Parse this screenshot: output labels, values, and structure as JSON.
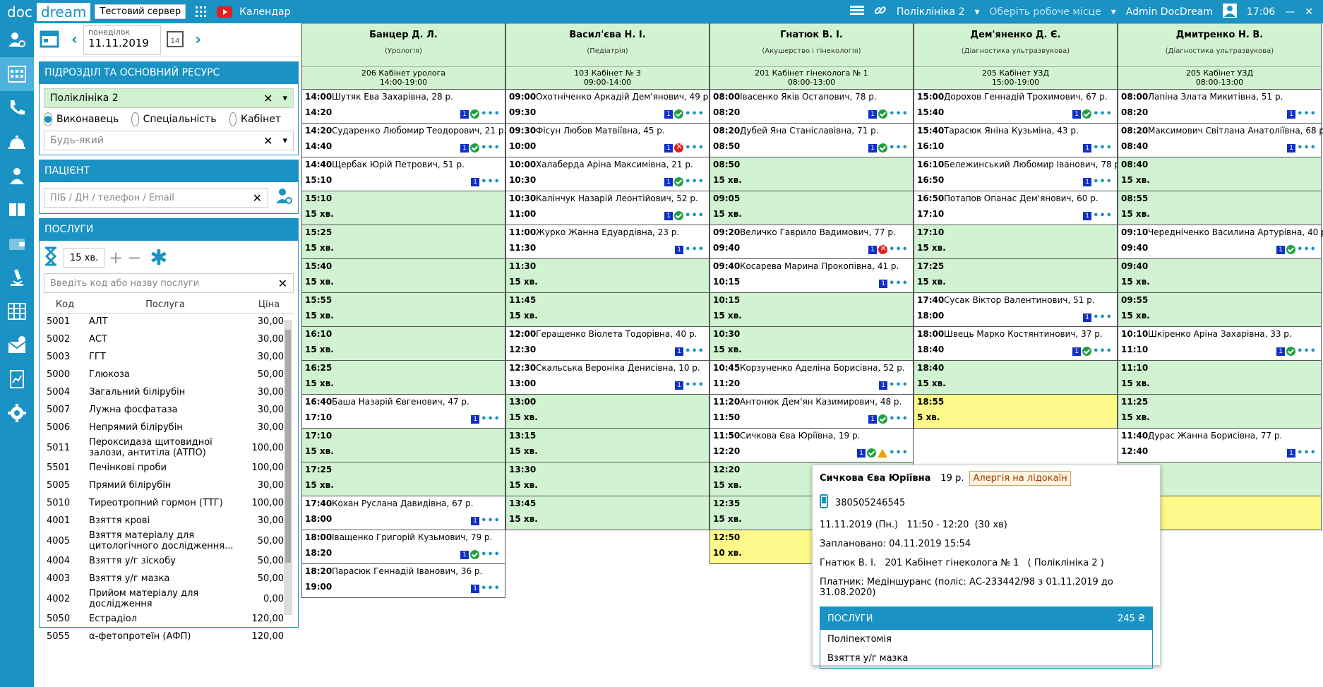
{
  "topbar": {
    "logo_doc": "doc",
    "logo_dream": "dream",
    "server": "Тестовий сервер",
    "section": "Календар",
    "clinic": "Поліклініка 2",
    "workplace": "Оберіть робоче місце",
    "user": "Admin DocDream",
    "time": "17:06"
  },
  "date": {
    "weekday": "понеділок",
    "value": "11.11.2019"
  },
  "unit": {
    "title": "ПІДРОЗДІЛ ТА ОСНОВНИЙ РЕСУРС",
    "clinic": "Поліклініка 2",
    "radio_performer": "Виконавець",
    "radio_specialty": "Спеціальність",
    "radio_room": "Кабінет",
    "any_placeholder": "Будь-який"
  },
  "patient": {
    "title": "ПАЦІЄНТ",
    "placeholder": "ПІБ / ДН / телефон / Email"
  },
  "services": {
    "title": "ПОСЛУГИ",
    "duration": "15 хв.",
    "search_placeholder": "Введіть код або назву послуги",
    "col_code": "Код",
    "col_name": "Послуга",
    "col_price": "Ціна",
    "items": [
      {
        "code": "5001",
        "name": "АЛТ",
        "price": "30,00"
      },
      {
        "code": "5002",
        "name": "АСТ",
        "price": "30,00"
      },
      {
        "code": "5003",
        "name": "ГГТ",
        "price": "30,00"
      },
      {
        "code": "5000",
        "name": "Глюкоза",
        "price": "50,00"
      },
      {
        "code": "5004",
        "name": "Загальний білірубін",
        "price": "30,00"
      },
      {
        "code": "5007",
        "name": "Лужна фосфатаза",
        "price": "30,00"
      },
      {
        "code": "5006",
        "name": "Непрямий білірубін",
        "price": "30,00"
      },
      {
        "code": "5011",
        "name": "Пероксидаза щитовидної залози, антитіла (АТПО)",
        "price": "100,00"
      },
      {
        "code": "5501",
        "name": "Печінкові проби",
        "price": "100,00"
      },
      {
        "code": "5005",
        "name": "Прямий білірубін",
        "price": "30,00"
      },
      {
        "code": "5010",
        "name": "Тиреотропний гормон (ТТГ)",
        "price": "100,00"
      },
      {
        "code": "4001",
        "name": "Взяття крові",
        "price": "30,00"
      },
      {
        "code": "4005",
        "name": "Взяття матеріалу для цитологічного дослідження...",
        "price": "50,00"
      },
      {
        "code": "4004",
        "name": "Взяття у/г зіскобу",
        "price": "50,00"
      },
      {
        "code": "4003",
        "name": "Взяття у/г мазка",
        "price": "50,00"
      },
      {
        "code": "4002",
        "name": "Прийом матеріалу для дослідження",
        "price": "0,00"
      },
      {
        "code": "5050",
        "name": "Естрадіол",
        "price": "120,00"
      },
      {
        "code": "5055",
        "name": "α-фетопротеїн (АФП)",
        "price": "120,00"
      }
    ]
  },
  "columns": [
    {
      "name": "Банцер Д. Л.",
      "spec": "(Урологія)",
      "room": "206 Кабінет уролога",
      "hours": "14:00-19:00",
      "slots": [
        {
          "t1": "14:00",
          "p": "Шутяк Ева Захарівна, 28 р.",
          "t2": "14:20",
          "s": "ok"
        },
        {
          "t1": "14:20",
          "p": "Сударенко Любомир Теодорович, 21 р.",
          "t2": "14:40",
          "s": "ok"
        },
        {
          "t1": "14:40",
          "p": "Щербак Юрій Петрович, 51 р.",
          "t2": "15:10",
          "s": "b"
        },
        {
          "t1": "15:10",
          "t2": "15 хв.",
          "f": "free"
        },
        {
          "t1": "15:25",
          "t2": "15 хв.",
          "f": "free"
        },
        {
          "t1": "15:40",
          "t2": "15 хв.",
          "f": "free"
        },
        {
          "t1": "15:55",
          "t2": "15 хв.",
          "f": "free"
        },
        {
          "t1": "16:10",
          "t2": "15 хв.",
          "f": "free"
        },
        {
          "t1": "16:25",
          "t2": "15 хв.",
          "f": "free"
        },
        {
          "t1": "16:40",
          "p": "Баша Назарій Євгенович, 47 р.",
          "t2": "17:10",
          "s": "b"
        },
        {
          "t1": "17:10",
          "t2": "15 хв.",
          "f": "free"
        },
        {
          "t1": "17:25",
          "t2": "15 хв.",
          "f": "free"
        },
        {
          "t1": "17:40",
          "p": "Кохан Руслана Давидівна, 67 р.",
          "t2": "18:00",
          "s": "b"
        },
        {
          "t1": "18:00",
          "p": "Іващенко Григорій Кузьмович, 79 р.",
          "t2": "18:20",
          "s": "ok"
        },
        {
          "t1": "18:20",
          "p": "Парасюк Геннадій Іванович, 36 р.",
          "t2": "19:00",
          "s": "b"
        }
      ]
    },
    {
      "name": "Васил'єва Н. І.",
      "spec": "(Педіатрія)",
      "room": "103 Кабінет № 3",
      "hours": "09:00-14:00",
      "slots": [
        {
          "t1": "09:00",
          "p": "Охотніченко Аркадій Дем'янович, 49 р.",
          "t2": "09:30",
          "s": "ok"
        },
        {
          "t1": "09:30",
          "p": "Фісун Любов Матвіївна, 45 р.",
          "t2": "10:00",
          "s": "no"
        },
        {
          "t1": "10:00",
          "p": "Халаберда Аріна Максимівна, 21 р.",
          "t2": "10:30",
          "s": "ok"
        },
        {
          "t1": "10:30",
          "p": "Калінчук Назарій Леонтійович, 52 р.",
          "t2": "11:00",
          "s": "ok"
        },
        {
          "t1": "11:00",
          "p": "Журко Жанна Едуардівна, 23 р.",
          "t2": "11:30",
          "s": "b"
        },
        {
          "t1": "11:30",
          "t2": "15 хв.",
          "f": "free"
        },
        {
          "t1": "11:45",
          "t2": "15 хв.",
          "f": "free"
        },
        {
          "t1": "12:00",
          "p": "Геращенко Віолета Тодорівна, 40 р.",
          "t2": "12:30",
          "s": "b"
        },
        {
          "t1": "12:30",
          "p": "Скальська Вероніка Денисівна, 10 р.",
          "t2": "13:00",
          "s": "b"
        },
        {
          "t1": "13:00",
          "t2": "15 хв.",
          "f": "free"
        },
        {
          "t1": "13:15",
          "t2": "15 хв.",
          "f": "free"
        },
        {
          "t1": "13:30",
          "t2": "15 хв.",
          "f": "free"
        },
        {
          "t1": "13:45",
          "t2": "15 хв.",
          "f": "free"
        }
      ]
    },
    {
      "name": "Гнатюк В. І.",
      "spec": "(Акушерство і гінекологія)",
      "room": "201 Кабінет гінеколога № 1",
      "hours": "08:00-13:00",
      "slots": [
        {
          "t1": "08:00",
          "p": "Івасенко Яків Остапович, 78 р.",
          "t2": "08:20",
          "s": "ok"
        },
        {
          "t1": "08:20",
          "p": "Дубей Яна Станіславівна, 71 р.",
          "t2": "08:50",
          "s": "ok"
        },
        {
          "t1": "08:50",
          "t2": "15 хв.",
          "f": "free"
        },
        {
          "t1": "09:05",
          "t2": "15 хв.",
          "f": "free"
        },
        {
          "t1": "09:20",
          "p": "Величко Гаврило Вадимович, 77 р.",
          "t2": "09:40",
          "s": "no"
        },
        {
          "t1": "09:40",
          "p": "Косарева Марина Прокопівна, 41 р.",
          "t2": "10:15",
          "s": "b"
        },
        {
          "t1": "10:15",
          "t2": "15 хв.",
          "f": "free"
        },
        {
          "t1": "10:30",
          "t2": "15 хв.",
          "f": "free"
        },
        {
          "t1": "10:45",
          "p": "Корзуненко Аделіна Борисівна, 52 р.",
          "t2": "11:20",
          "s": "b"
        },
        {
          "t1": "11:20",
          "p": "Антонюк Дем'ян Казимирович, 48 р.",
          "t2": "11:50",
          "s": "ok"
        },
        {
          "t1": "11:50",
          "p": "Сичкова Єва Юріївна, 19 р.",
          "t2": "12:20",
          "s": "warn"
        },
        {
          "t1": "12:20",
          "t2": "15 хв.",
          "f": "free"
        },
        {
          "t1": "12:35",
          "t2": "15 хв.",
          "f": "free"
        },
        {
          "t1": "12:50",
          "t2": "10 хв.",
          "f": "yellow"
        }
      ]
    },
    {
      "name": "Дем'яненко Д. Є.",
      "spec": "(Діагностика ультразвукова)",
      "room": "205 Кабінет УЗД",
      "hours": "15:00-19:00",
      "slots": [
        {
          "t1": "15:00",
          "p": "Дорохов Геннадій Трохимович, 67 р.",
          "t2": "15:40",
          "s": "ok"
        },
        {
          "t1": "15:40",
          "p": "Тарасюк Яніна Кузьміна, 43 р.",
          "t2": "16:10",
          "s": "b"
        },
        {
          "t1": "16:10",
          "p": "Бележинський Любомир Іванович, 78 р.",
          "t2": "16:50",
          "s": "b"
        },
        {
          "t1": "16:50",
          "p": "Потапов Опанас Дем'янович, 60 р.",
          "t2": "17:10",
          "s": "b"
        },
        {
          "t1": "17:10",
          "t2": "15 хв.",
          "f": "free"
        },
        {
          "t1": "17:25",
          "t2": "15 хв.",
          "f": "free"
        },
        {
          "t1": "17:40",
          "p": "Сусак Віктор Валентинович, 51 р.",
          "t2": "18:00",
          "s": "b"
        },
        {
          "t1": "18:00",
          "p": "Швець Марко Костянтинович, 37 р.",
          "t2": "18:40",
          "s": "ok"
        },
        {
          "t1": "18:40",
          "t2": "15 хв.",
          "f": "free"
        },
        {
          "t1": "18:55",
          "t2": "5 хв.",
          "f": "yellow"
        }
      ]
    },
    {
      "name": "Дмитренко Н. В.",
      "spec": "(Діагностика ультразвукова)",
      "room": "205 Кабінет УЗД",
      "hours": "08:00-13:00",
      "slots": [
        {
          "t1": "08:00",
          "p": "Лапіна Злата Микитівна, 51 р.",
          "t2": "08:20",
          "s": "b"
        },
        {
          "t1": "08:20",
          "p": "Максимович Світлана Анатоліївна, 68 р.",
          "t2": "08:40",
          "s": "b"
        },
        {
          "t1": "08:40",
          "t2": "15 хв.",
          "f": "free"
        },
        {
          "t1": "08:55",
          "t2": "15 хв.",
          "f": "free"
        },
        {
          "t1": "09:10",
          "p": "Чередніченко Василина Артурівна, 40 р.",
          "t2": "09:40",
          "s": "ok"
        },
        {
          "t1": "09:40",
          "t2": "15 хв.",
          "f": "free"
        },
        {
          "t1": "09:55",
          "t2": "15 хв.",
          "f": "free"
        },
        {
          "t1": "10:10",
          "p": "Шкіренко Аріна Захарівна, 33 р.",
          "t2": "11:10",
          "s": "ok"
        },
        {
          "t1": "11:10",
          "t2": "15 хв.",
          "f": "free"
        },
        {
          "t1": "11:25",
          "t2": "15 хв.",
          "f": "free"
        },
        {
          "t1": "11:40",
          "p": "Дурас Жанна Борисівна, 77 р.",
          "t2": "12:40",
          "s": "b"
        },
        {
          "t1": "",
          "t2": "",
          "f": "free"
        },
        {
          "t1": "",
          "t2": "",
          "f": "yellow"
        }
      ]
    }
  ],
  "tooltip": {
    "name": "Сичкова Єва Юріївна",
    "age": "19 р.",
    "allergy": "Алергія на лідокаїн",
    "phone": "380505246545",
    "when": "11.11.2019 (Пн.)   11:50 - 12:20  (30 хв)",
    "planned": "Заплановано: 04.11.2019 15:54",
    "doctor": "Гнатюк В. І.   201 Кабінет гінеколога № 1   ( Поліклініка 2 )",
    "payer": "Платник: Медіншуранс (поліс: АС-233442/98 з 01.11.2019 до 31.08.2020)",
    "services_title": "ПОСЛУГИ",
    "services_total": "245 ₴",
    "services": [
      "Поліпектомія",
      "Взяття у/г мазка"
    ]
  },
  "colors": {
    "brand": "#1a92c4",
    "free": "#d1f3d1",
    "yellow": "#fdf98a"
  }
}
